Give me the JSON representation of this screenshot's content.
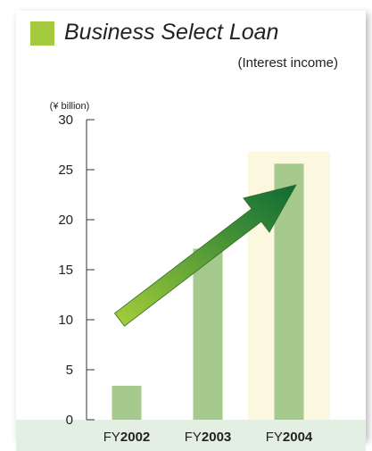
{
  "chart_data": {
    "type": "bar",
    "title": "Business Select Loan",
    "subtitle": "(Interest income)",
    "ylabel": "(¥ billion)",
    "xlabel": "",
    "ylim": [
      0,
      30
    ],
    "yticks": [
      0,
      5,
      10,
      15,
      20,
      25,
      30
    ],
    "categories": [
      {
        "prefix": "FY",
        "year": "2002"
      },
      {
        "prefix": "FY",
        "year": "2003"
      },
      {
        "prefix": "FY",
        "year": "2004"
      }
    ],
    "values": [
      3.4,
      17.1,
      25.6
    ],
    "highlight_category": "2004",
    "trend_arrow": "rising",
    "colors": {
      "title_square": "#a6ca3f",
      "bar": "#a6c98e",
      "highlight_band": "#fbf8df",
      "axis_band": "#e3efe2",
      "arrow_start": "#a6cf3a",
      "arrow_end": "#0c6b34",
      "axis": "#333333"
    }
  }
}
